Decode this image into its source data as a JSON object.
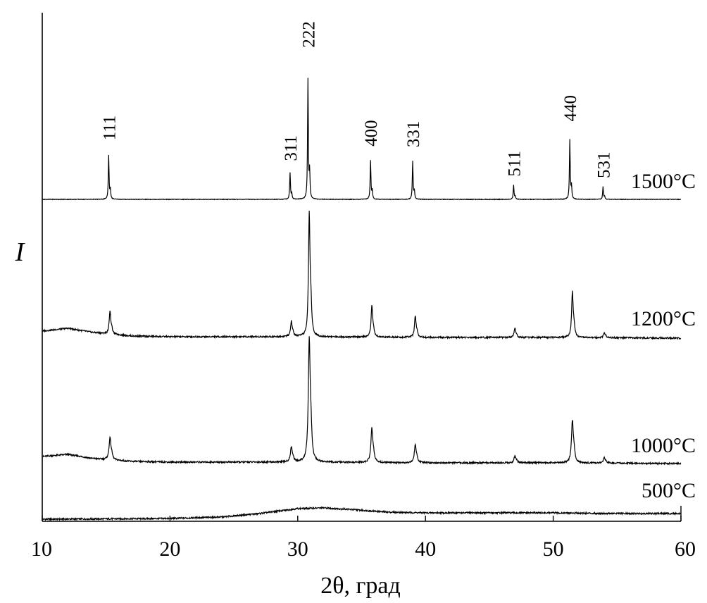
{
  "chart_data": {
    "type": "line",
    "xlabel": "2θ, град",
    "ylabel": "I",
    "xlim": [
      10,
      60
    ],
    "xticks": [
      10,
      20,
      30,
      40,
      50,
      60
    ],
    "yticks_shown": false,
    "grid": false,
    "series": [
      {
        "name": "500°C",
        "background": [
          [
            10,
            0
          ],
          [
            14,
            0.3
          ],
          [
            20,
            1
          ],
          [
            24,
            3
          ],
          [
            27,
            8
          ],
          [
            30,
            15
          ],
          [
            32,
            16
          ],
          [
            34,
            14
          ],
          [
            37,
            10
          ],
          [
            40,
            9
          ],
          [
            45,
            9
          ],
          [
            50,
            9
          ],
          [
            55,
            8
          ],
          [
            60,
            8
          ]
        ],
        "peaks": []
      },
      {
        "name": "1000°C",
        "background": [
          [
            10,
            10
          ],
          [
            12,
            13
          ],
          [
            14,
            7
          ],
          [
            17,
            3
          ],
          [
            20,
            2
          ],
          [
            25,
            2
          ],
          [
            30,
            2
          ],
          [
            40,
            1
          ],
          [
            50,
            1
          ],
          [
            60,
            0
          ]
        ],
        "peaks": [
          [
            15.3,
            30
          ],
          [
            29.5,
            20
          ],
          [
            30.9,
            168
          ],
          [
            35.8,
            46
          ],
          [
            39.2,
            24
          ],
          [
            47.0,
            9
          ],
          [
            51.5,
            58
          ],
          [
            54.0,
            7
          ]
        ]
      },
      {
        "name": "1200°C",
        "background": [
          [
            10,
            10
          ],
          [
            12,
            14
          ],
          [
            14,
            8
          ],
          [
            17,
            3
          ],
          [
            20,
            2
          ],
          [
            30,
            2
          ],
          [
            40,
            1
          ],
          [
            50,
            1
          ],
          [
            60,
            0
          ]
        ],
        "peaks": [
          [
            15.3,
            32
          ],
          [
            29.5,
            21
          ],
          [
            30.9,
            170
          ],
          [
            35.8,
            43
          ],
          [
            39.2,
            30
          ],
          [
            47.0,
            13
          ],
          [
            51.5,
            63
          ],
          [
            54.0,
            7
          ]
        ]
      },
      {
        "name": "1500°C",
        "background": [
          [
            10,
            0
          ],
          [
            60,
            0
          ]
        ],
        "peaks": [
          [
            15.2,
            62
          ],
          [
            29.4,
            38
          ],
          [
            30.8,
            170
          ],
          [
            35.7,
            55
          ],
          [
            39.0,
            54
          ],
          [
            46.9,
            20
          ],
          [
            51.3,
            84
          ],
          [
            53.9,
            18
          ]
        ]
      }
    ],
    "peak_labels": [
      {
        "text": "111",
        "x": 15.2
      },
      {
        "text": "311",
        "x": 29.4
      },
      {
        "text": "222",
        "x": 30.8
      },
      {
        "text": "400",
        "x": 35.7
      },
      {
        "text": "331",
        "x": 39.0
      },
      {
        "text": "511",
        "x": 46.9
      },
      {
        "text": "440",
        "x": 51.3
      },
      {
        "text": "531",
        "x": 53.9
      }
    ]
  }
}
